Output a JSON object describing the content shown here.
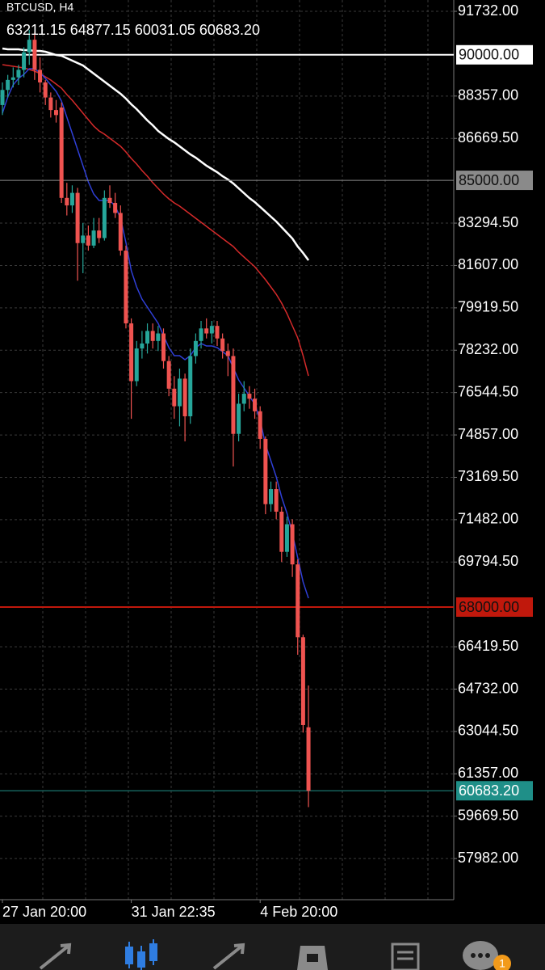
{
  "chart_data": {
    "type": "candlestick",
    "title": "BTCUSD, H4",
    "subtitle": "63211.15 64877.15 60031.05 60683.20",
    "categories": [
      "27 Jan 20:00",
      null,
      null,
      null,
      null,
      null,
      null,
      null,
      null,
      null,
      null,
      null,
      null,
      null,
      null,
      null,
      null,
      null,
      null,
      null,
      null,
      null,
      null,
      null,
      "31 Jan 22:35",
      null,
      null,
      null,
      null,
      null,
      null,
      null,
      null,
      null,
      null,
      null,
      null,
      null,
      null,
      null,
      null,
      null,
      null,
      null,
      null,
      null,
      null,
      null,
      "4 Feb 20:00",
      null,
      null,
      null,
      null,
      null,
      null,
      null,
      null,
      null
    ],
    "open": [
      88000,
      88600,
      89000,
      89100,
      89400,
      90100,
      90600,
      89400,
      88900,
      88300,
      87800,
      87900,
      84300,
      84000,
      84500,
      82500,
      82800,
      82400,
      83000,
      82700,
      84300,
      84100,
      83700,
      82200,
      79300,
      77000,
      78300,
      78500,
      79000,
      78600,
      78900,
      77800,
      76700,
      76000,
      77100,
      75600,
      78000,
      78600,
      79100,
      78900,
      79200,
      78700,
      78200,
      78000,
      74900,
      76100,
      76500,
      76300,
      75800,
      74700,
      72100,
      72700,
      71800,
      70200,
      71300,
      69700,
      66800,
      63211.15
    ],
    "high": [
      88900,
      89200,
      89500,
      89600,
      90300,
      91000,
      90900,
      89900,
      89000,
      88500,
      88200,
      88100,
      84900,
      84800,
      84700,
      83300,
      83200,
      83500,
      83500,
      84600,
      84800,
      84500,
      84000,
      82400,
      79500,
      78600,
      79000,
      79300,
      79300,
      79200,
      79100,
      78000,
      77200,
      77500,
      77300,
      78300,
      78900,
      79400,
      79500,
      79400,
      79400,
      78900,
      78500,
      78300,
      76500,
      77000,
      76800,
      76700,
      76000,
      74800,
      73000,
      73000,
      72000,
      71600,
      71500,
      69900,
      66900,
      64877.15
    ],
    "low": [
      87600,
      88300,
      88700,
      88800,
      89100,
      89600,
      89000,
      88500,
      88000,
      87500,
      87300,
      84100,
      83600,
      83700,
      81000,
      81300,
      82200,
      82300,
      82500,
      82600,
      83900,
      83500,
      82000,
      79100,
      75500,
      76800,
      77900,
      78100,
      78300,
      78200,
      77500,
      76400,
      75500,
      75200,
      74600,
      75300,
      77700,
      78300,
      78700,
      78500,
      78400,
      77900,
      77200,
      73600,
      74600,
      75800,
      75900,
      75500,
      74300,
      71700,
      71800,
      71500,
      69800,
      70000,
      69200,
      66100,
      63000,
      60031.05
    ],
    "close": [
      88600,
      89000,
      89100,
      89400,
      90100,
      90600,
      89400,
      88900,
      88300,
      87800,
      87600,
      84300,
      84000,
      84500,
      82500,
      82800,
      82400,
      83000,
      82700,
      84300,
      84100,
      83700,
      82200,
      79300,
      77000,
      78300,
      78500,
      79000,
      78600,
      78900,
      77800,
      76700,
      76000,
      77100,
      75600,
      78000,
      78600,
      79100,
      78900,
      79200,
      78700,
      78200,
      78000,
      74900,
      76100,
      76500,
      76300,
      75800,
      74700,
      72100,
      72700,
      71800,
      70200,
      71300,
      69700,
      66800,
      63300,
      60683.2
    ],
    "up_color": "#26a69a",
    "down_color": "#ef5350",
    "series": [
      {
        "color": "#ffffff",
        "values": [
          90251,
          90219,
          90219,
          90219,
          90187,
          90187,
          90155,
          90155,
          90122,
          90058,
          89993,
          89961,
          89865,
          89768,
          89671,
          89575,
          89414,
          89253,
          89092,
          88931,
          88770,
          88609,
          88448,
          88255,
          88029,
          87836,
          87610,
          87385,
          87192,
          86967,
          86806,
          86645,
          86516,
          86355,
          86194,
          86033,
          85904,
          85743,
          85582,
          85453,
          85324,
          85163,
          85035,
          84874,
          84680,
          84487,
          84294,
          84133,
          83940,
          83747,
          83553,
          83360,
          83135,
          82908,
          82684,
          82363,
          82105,
          81815
        ]
      },
      {
        "color": "#d42a2a",
        "values": [
          89607,
          89575,
          89543,
          89510,
          89478,
          89414,
          89349,
          89253,
          89124,
          88995,
          88834,
          88673,
          88416,
          88190,
          87933,
          87675,
          87417,
          87160,
          86967,
          86838,
          86677,
          86516,
          86355,
          86130,
          85872,
          85647,
          85389,
          85164,
          84906,
          84681,
          84455,
          84262,
          84101,
          83972,
          83811,
          83650,
          83489,
          83328,
          83167,
          83006,
          82845,
          82684,
          82523,
          82362,
          82137,
          81943,
          81750,
          81557,
          81299,
          81041,
          80752,
          80462,
          80108,
          79689,
          79206,
          78723,
          78015,
          77210
        ]
      },
      {
        "color": "#2f3fd6",
        "values": [
          87675,
          88319,
          88802,
          89060,
          89221,
          89446,
          89446,
          89285,
          89060,
          88802,
          88545,
          88158,
          87514,
          86870,
          86226,
          85582,
          84938,
          84455,
          84197,
          84197,
          84197,
          83972,
          83489,
          82523,
          81396,
          80752,
          80269,
          79947,
          79625,
          79303,
          78820,
          78337,
          78015,
          78015,
          77854,
          78015,
          78337,
          78498,
          78401,
          78401,
          78337,
          78176,
          78015,
          77532,
          77049,
          76727,
          76405,
          76083,
          75439,
          74473,
          73829,
          73185,
          72380,
          71736,
          70931,
          69965,
          69000,
          68355
        ]
      }
    ],
    "price_lines": [
      {
        "value": 90000,
        "label": "90000.00",
        "color": "#ffffff"
      },
      {
        "value": 85000,
        "label": "85000.00",
        "color": "#8a8a8a"
      },
      {
        "value": 68000,
        "label": "68000.00",
        "color": "#c0180c"
      },
      {
        "value": 60683.2,
        "label": "60683.20",
        "color": "#1f8f88"
      }
    ],
    "ylim": [
      56344,
      92183
    ],
    "yticks": [
      {
        "value": 91732,
        "label": "91732.00"
      },
      {
        "value": 88357,
        "label": "88357.00"
      },
      {
        "value": 86669.5,
        "label": "86669.50"
      },
      {
        "value": 83294.5,
        "label": "83294.50"
      },
      {
        "value": 81607,
        "label": "81607.00"
      },
      {
        "value": 79919.5,
        "label": "79919.50"
      },
      {
        "value": 78232,
        "label": "78232.00"
      },
      {
        "value": 76544.5,
        "label": "76544.50"
      },
      {
        "value": 74857,
        "label": "74857.00"
      },
      {
        "value": 73169.5,
        "label": "73169.50"
      },
      {
        "value": 71482,
        "label": "71482.00"
      },
      {
        "value": 69794.5,
        "label": "69794.50"
      },
      {
        "value": 66419.5,
        "label": "66419.50"
      },
      {
        "value": 64732,
        "label": "64732.00"
      },
      {
        "value": 63044.5,
        "label": "63044.50"
      },
      {
        "value": 61357,
        "label": "61357.00"
      },
      {
        "value": 59669.5,
        "label": "59669.50"
      },
      {
        "value": 57982,
        "label": "57982.00"
      }
    ],
    "grid": true
  },
  "nav": {
    "badge": 1
  }
}
